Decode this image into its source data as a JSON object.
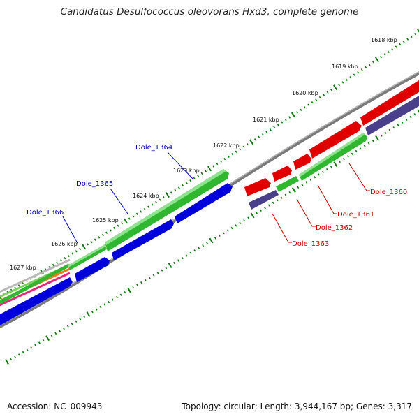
{
  "title": "Candidatus Desulfococcus oleovorans Hxd3, complete genome",
  "footer": {
    "accession": "Accession: NC_009943",
    "summary": "Topology: circular; Length: 3,944,167 bp; Genes: 3,317"
  },
  "kbp_labels": [
    "1618 kbp",
    "1619 kbp",
    "1620 kbp",
    "1621 kbp",
    "1622 kbp",
    "1623 kbp",
    "1624 kbp",
    "1625 kbp",
    "1626 kbp",
    "1627 kbp"
  ],
  "genes": [
    {
      "label": "Dole_1364",
      "color": "#0000aa"
    },
    {
      "label": "Dole_1365",
      "color": "#0000aa"
    },
    {
      "label": "Dole_1366",
      "color": "#0000aa"
    },
    {
      "label": "Dole_1360",
      "color": "#cc0000"
    },
    {
      "label": "Dole_1361",
      "color": "#cc0000"
    },
    {
      "label": "Dole_1362",
      "color": "#cc0000"
    },
    {
      "label": "Dole_1363",
      "color": "#cc0000"
    }
  ],
  "colors": {
    "backbone": "#808080",
    "forward_orf": "#e00000",
    "reverse_orf": "#0000e0",
    "cds": "#22bb22",
    "gene_other": "#4a3f8a",
    "tick": "#0b7a0b"
  }
}
